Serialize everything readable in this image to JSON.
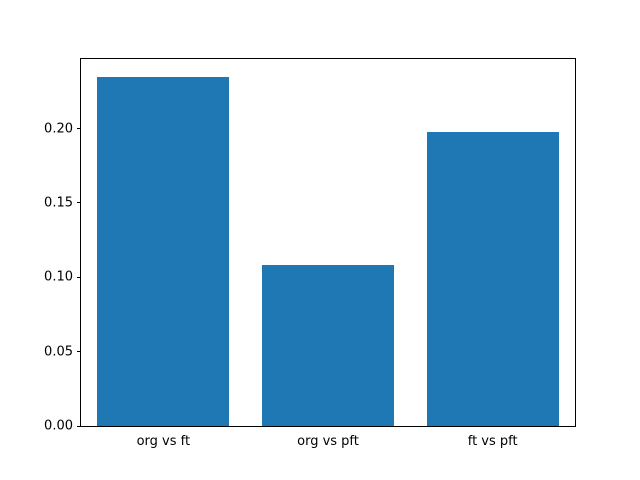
{
  "chart_data": {
    "type": "bar",
    "title": "",
    "xlabel": "",
    "ylabel": "",
    "categories": [
      "org vs ft",
      "org vs pft",
      "ft vs pft"
    ],
    "values": [
      0.235,
      0.108,
      0.198
    ],
    "ylim": [
      0,
      0.2468
    ],
    "yticks": [
      0.0,
      0.05,
      0.1,
      0.15,
      0.2
    ],
    "ytick_format_decimals": 2,
    "bar_color": "#1f77b4",
    "bar_width_fraction": 0.8,
    "grid": false,
    "legend": false
  }
}
